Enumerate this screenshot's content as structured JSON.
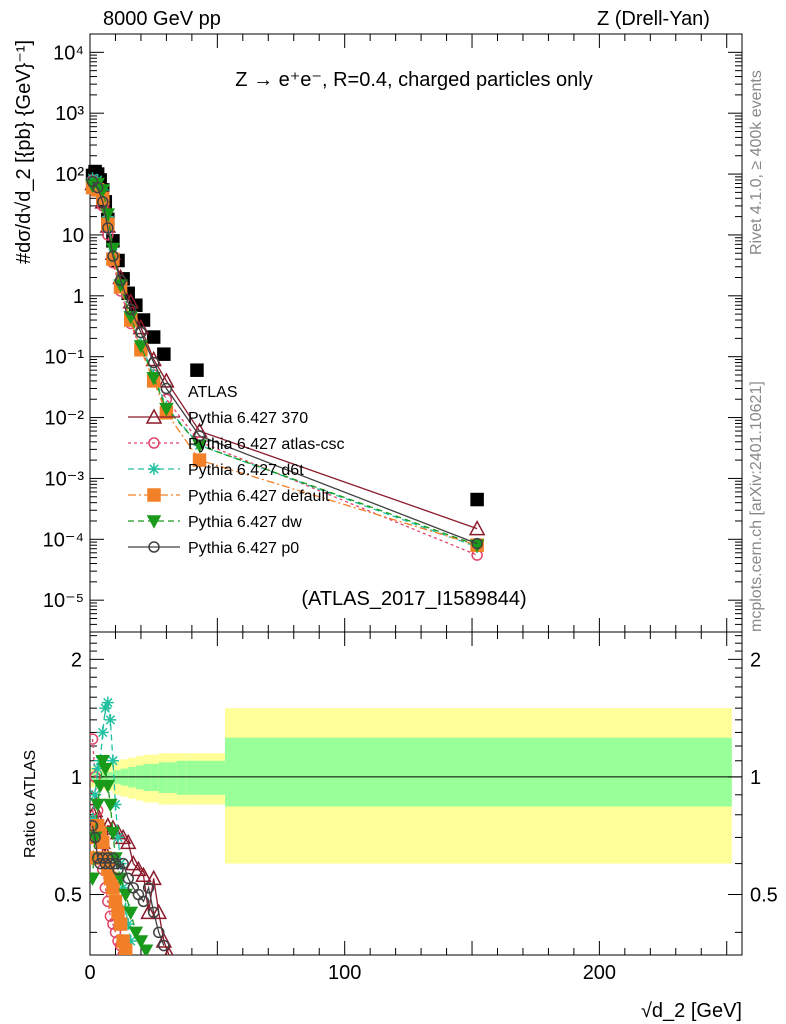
{
  "header": {
    "left": "8000 GeV pp",
    "right": "Z (Drell-Yan)"
  },
  "side_labels": {
    "rivet": "Rivet 4.1.0, ≥ 400k events",
    "site": "mcplots.cern.ch [arXiv:2401.10621]"
  },
  "chart_data": [
    {
      "type": "scatter",
      "panel": "main",
      "title": "Z → e⁺e⁻, R=0.4, charged particles only",
      "xlabel": "√d_2 [GeV]",
      "ylabel": "#dσ/d√d_2 [{pb} {GeV}⁻¹]",
      "xlim": [
        0,
        256
      ],
      "ylim": [
        3e-06,
        20000
      ],
      "yscale": "log",
      "ytick_labels": [
        "10⁻⁵",
        "10⁻⁴",
        "10⁻³",
        "10⁻²",
        "10⁻¹",
        "1",
        "10",
        "10²",
        "10³",
        "10⁴"
      ],
      "yticks": [
        1e-05,
        0.0001,
        0.001,
        0.01,
        0.1,
        1,
        10,
        100,
        1000,
        10000
      ],
      "watermark": "(ATLAS_2017_I1589844)",
      "legend_position": "center-left",
      "series": [
        {
          "name": "ATLAS",
          "color": "#000000",
          "marker": "square",
          "x": [
            1,
            2,
            3,
            4,
            5,
            6,
            7,
            9,
            11,
            13,
            15,
            18,
            21,
            25,
            29,
            42,
            152
          ],
          "y": [
            95,
            110,
            100,
            80,
            55,
            35,
            18,
            8,
            3.8,
            1.9,
            1.1,
            0.7,
            0.4,
            0.21,
            0.11,
            0.06,
            0.00045
          ]
        },
        {
          "name": "Pythia 6.427 370",
          "color": "#8b1a2a",
          "marker": "open-triangle",
          "line": "solid",
          "x": [
            1,
            3,
            5,
            7,
            9,
            12,
            16,
            20,
            25,
            30,
            43,
            152
          ],
          "y": [
            70,
            60,
            35,
            14,
            5,
            2,
            0.8,
            0.3,
            0.09,
            0.04,
            0.006,
            0.00015
          ]
        },
        {
          "name": "Pythia 6.427 atlas-csc",
          "color": "#e0456a",
          "marker": "open-circle",
          "line": "dotted",
          "x": [
            1,
            3,
            5,
            7,
            9,
            12,
            16,
            20,
            25,
            30,
            43,
            152
          ],
          "y": [
            80,
            55,
            30,
            10,
            3.5,
            1.2,
            0.35,
            0.13,
            0.05,
            0.02,
            0.004,
            5.5e-05
          ]
        },
        {
          "name": "Pythia 6.427 d6t",
          "color": "#20c0a0",
          "marker": "star",
          "line": "dashed",
          "x": [
            1,
            3,
            5,
            7,
            9,
            12,
            16,
            20,
            25,
            30,
            43,
            152
          ],
          "y": [
            85,
            80,
            55,
            20,
            5,
            1.5,
            0.45,
            0.16,
            0.05,
            0.015,
            0.0035,
            7.5e-05
          ]
        },
        {
          "name": "Pythia 6.427 default",
          "color": "#f28028",
          "marker": "square",
          "line": "dashdot",
          "x": [
            1,
            3,
            5,
            7,
            9,
            12,
            16,
            20,
            25,
            30,
            43,
            152
          ],
          "y": [
            60,
            55,
            40,
            15,
            4,
            1.4,
            0.4,
            0.13,
            0.04,
            0.012,
            0.002,
            8e-05
          ]
        },
        {
          "name": "Pythia 6.427 dw",
          "color": "#1a9a1a",
          "marker": "triangle-down",
          "line": "dashed",
          "x": [
            1,
            3,
            5,
            7,
            9,
            12,
            16,
            20,
            25,
            30,
            43,
            152
          ],
          "y": [
            65,
            70,
            55,
            22,
            6,
            1.5,
            0.45,
            0.15,
            0.045,
            0.014,
            0.0035,
            8e-05
          ]
        },
        {
          "name": "Pythia 6.427 p0",
          "color": "#404040",
          "marker": "open-circle",
          "line": "solid",
          "x": [
            1,
            3,
            5,
            7,
            9,
            12,
            16,
            20,
            25,
            30,
            43,
            152
          ],
          "y": [
            75,
            60,
            35,
            13,
            4.5,
            1.8,
            0.6,
            0.25,
            0.08,
            0.03,
            0.005,
            8.5e-05
          ]
        }
      ]
    },
    {
      "type": "line",
      "panel": "ratio",
      "ylabel": "Ratio to ATLAS",
      "xlabel": "√d_2 [GeV]",
      "xlim": [
        0,
        256
      ],
      "ylim": [
        0.35,
        2.35
      ],
      "yscale": "log",
      "ytick_labels": [
        "0.5",
        "1",
        "2"
      ],
      "yticks": [
        0.5,
        1,
        2
      ],
      "xtick_labels": [
        "0",
        "100",
        "200"
      ],
      "xticks": [
        0,
        100,
        200
      ],
      "bands": {
        "edges": [
          0,
          3,
          6,
          9,
          12,
          15,
          18,
          21,
          24,
          27,
          30,
          34,
          38,
          43,
          53,
          252
        ],
        "stat_hi": [
          1.02,
          1.02,
          1.03,
          1.04,
          1.05,
          1.06,
          1.07,
          1.08,
          1.08,
          1.09,
          1.09,
          1.1,
          1.1,
          1.1,
          1.26
        ],
        "stat_lo": [
          0.98,
          0.98,
          0.97,
          0.96,
          0.95,
          0.94,
          0.93,
          0.92,
          0.92,
          0.91,
          0.91,
          0.9,
          0.9,
          0.9,
          0.84
        ],
        "total_hi": [
          1.06,
          1.07,
          1.08,
          1.1,
          1.11,
          1.12,
          1.13,
          1.14,
          1.14,
          1.15,
          1.15,
          1.15,
          1.15,
          1.15,
          1.5
        ],
        "total_lo": [
          0.94,
          0.93,
          0.92,
          0.9,
          0.89,
          0.88,
          0.87,
          0.86,
          0.86,
          0.85,
          0.85,
          0.85,
          0.85,
          0.85,
          0.6
        ]
      },
      "series": [
        {
          "name": "Pythia 6.427 370",
          "color": "#8b1a2a",
          "x": [
            1,
            2,
            3,
            4,
            5,
            6,
            7,
            9,
            11,
            13,
            15,
            17,
            19,
            21,
            23,
            25,
            27,
            29,
            31
          ],
          "y": [
            0.88,
            0.82,
            0.78,
            0.72,
            0.68,
            0.64,
            0.75,
            0.74,
            0.72,
            0.7,
            0.68,
            0.6,
            0.58,
            0.56,
            0.45,
            0.55,
            0.45,
            0.38,
            0.35
          ]
        },
        {
          "name": "Pythia 6.427 atlas-csc",
          "color": "#e0456a",
          "x": [
            1,
            2,
            3,
            4,
            5,
            6,
            7,
            8,
            9,
            10,
            11,
            12,
            13
          ],
          "y": [
            1.25,
            1.0,
            0.82,
            0.7,
            0.58,
            0.52,
            0.48,
            0.44,
            0.42,
            0.4,
            0.38,
            0.37,
            0.35
          ]
        },
        {
          "name": "Pythia 6.427 d6t",
          "color": "#20c0a0",
          "x": [
            1,
            2,
            3,
            4,
            5,
            6,
            7,
            8,
            9,
            10,
            11,
            12,
            13,
            14,
            15,
            16
          ],
          "y": [
            0.78,
            0.9,
            1.05,
            1.1,
            1.3,
            1.5,
            1.55,
            1.4,
            1.1,
            0.85,
            0.7,
            0.6,
            0.52,
            0.46,
            0.42,
            0.38
          ]
        },
        {
          "name": "Pythia 6.427 default",
          "color": "#f28028",
          "x": [
            1,
            2,
            3,
            4,
            5,
            6,
            7,
            8,
            9,
            10,
            11,
            12,
            13,
            14
          ],
          "y": [
            0.62,
            0.7,
            0.75,
            0.72,
            0.68,
            0.62,
            0.58,
            0.55,
            0.52,
            0.48,
            0.45,
            0.42,
            0.38,
            0.36
          ]
        },
        {
          "name": "Pythia 6.427 dw",
          "color": "#1a9a1a",
          "x": [
            1,
            2,
            3,
            4,
            5,
            6,
            7,
            8,
            9,
            10,
            12,
            14,
            16,
            18,
            20,
            22
          ],
          "y": [
            0.55,
            0.7,
            0.85,
            0.95,
            1.1,
            1.05,
            0.95,
            0.85,
            0.72,
            0.62,
            0.55,
            0.5,
            0.45,
            0.4,
            0.38,
            0.36
          ]
        },
        {
          "name": "Pythia 6.427 p0",
          "color": "#404040",
          "x": [
            1,
            2,
            3,
            4,
            5,
            6,
            7,
            8,
            9,
            10,
            11,
            13,
            15,
            17,
            19,
            21,
            23,
            25,
            27,
            29
          ],
          "y": [
            0.75,
            0.7,
            0.62,
            0.6,
            0.62,
            0.6,
            0.62,
            0.6,
            0.62,
            0.6,
            0.58,
            0.6,
            0.55,
            0.52,
            0.5,
            0.48,
            0.52,
            0.45,
            0.4,
            0.37
          ]
        }
      ]
    }
  ]
}
